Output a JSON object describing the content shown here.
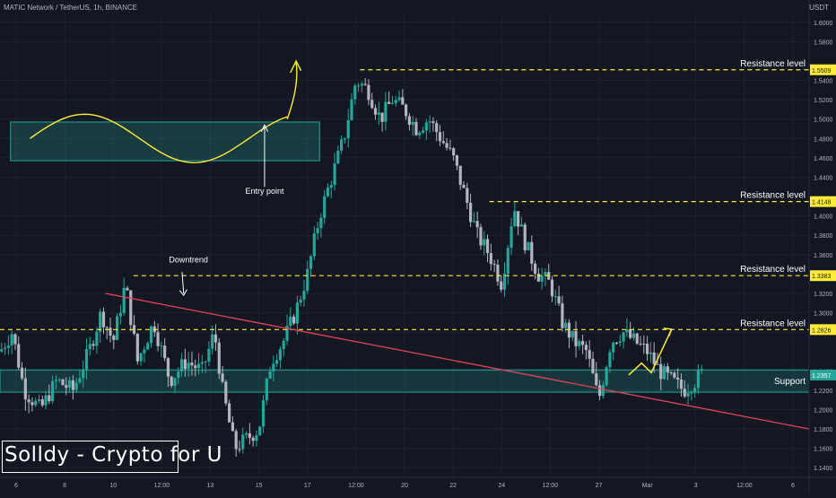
{
  "header": {
    "title": "MATIC Network / TetherUS, 1h, BINANCE",
    "currency": "USDT"
  },
  "watermark": {
    "text": "Solldy - Crypto for U"
  },
  "colors": {
    "background": "#131722",
    "up": "#26a69a",
    "down": "#b2b5be",
    "resistance": "#ffeb3b",
    "trend": "#e0445a",
    "zone": "#26a69a",
    "annotation": "#ffeb3b"
  },
  "chart_data": {
    "type": "candlestick",
    "symbol": "MATIC Network / TetherUS, 1h, BINANCE",
    "y_unit": "USDT",
    "ylim": [
      1.13,
      1.61
    ],
    "y_ticks": [
      "1.6000",
      "1.5800",
      "1.5400",
      "1.5200",
      "1.5000",
      "1.4800",
      "1.4600",
      "1.4400",
      "1.4000",
      "1.3800",
      "1.3600",
      "1.3200",
      "1.3000",
      "1.2800",
      "1.2400",
      "1.2200",
      "1.2000",
      "1.1800",
      "1.1600",
      "1.1400"
    ],
    "x_ticks": [
      "6",
      "8",
      "10",
      "12:00",
      "13",
      "15",
      "17",
      "12:00",
      "20",
      "22",
      "24",
      "12:00",
      "27",
      "Mar",
      "3",
      "12:00",
      "6"
    ],
    "price_path": [
      [
        0,
        1.26
      ],
      [
        0.015,
        1.28
      ],
      [
        0.03,
        1.22
      ],
      [
        0.05,
        1.2
      ],
      [
        0.07,
        1.23
      ],
      [
        0.09,
        1.22
      ],
      [
        0.11,
        1.26
      ],
      [
        0.125,
        1.3
      ],
      [
        0.14,
        1.27
      ],
      [
        0.155,
        1.33
      ],
      [
        0.17,
        1.25
      ],
      [
        0.19,
        1.29
      ],
      [
        0.21,
        1.23
      ],
      [
        0.23,
        1.25
      ],
      [
        0.25,
        1.24
      ],
      [
        0.265,
        1.28
      ],
      [
        0.275,
        1.22
      ],
      [
        0.29,
        1.16
      ],
      [
        0.305,
        1.17
      ],
      [
        0.32,
        1.18
      ],
      [
        0.335,
        1.25
      ],
      [
        0.35,
        1.27
      ],
      [
        0.365,
        1.3
      ],
      [
        0.38,
        1.34
      ],
      [
        0.395,
        1.4
      ],
      [
        0.41,
        1.44
      ],
      [
        0.425,
        1.48
      ],
      [
        0.44,
        1.54
      ],
      [
        0.455,
        1.53
      ],
      [
        0.47,
        1.5
      ],
      [
        0.485,
        1.52
      ],
      [
        0.5,
        1.51
      ],
      [
        0.515,
        1.49
      ],
      [
        0.53,
        1.5
      ],
      [
        0.545,
        1.48
      ],
      [
        0.56,
        1.46
      ],
      [
        0.575,
        1.42
      ],
      [
        0.59,
        1.38
      ],
      [
        0.605,
        1.36
      ],
      [
        0.62,
        1.33
      ],
      [
        0.635,
        1.41
      ],
      [
        0.65,
        1.37
      ],
      [
        0.665,
        1.34
      ],
      [
        0.68,
        1.33
      ],
      [
        0.695,
        1.29
      ],
      [
        0.71,
        1.27
      ],
      [
        0.725,
        1.26
      ],
      [
        0.74,
        1.21
      ],
      [
        0.755,
        1.27
      ],
      [
        0.77,
        1.28
      ],
      [
        0.785,
        1.27
      ],
      [
        0.8,
        1.26
      ],
      [
        0.815,
        1.24
      ],
      [
        0.83,
        1.23
      ],
      [
        0.845,
        1.22
      ],
      [
        0.86,
        1.23
      ],
      [
        0.87,
        1.24
      ]
    ],
    "levels": [
      {
        "label": "Resistance level",
        "value": 1.5509,
        "tag": "1.5509"
      },
      {
        "label": "Resistance level",
        "value": 1.4148,
        "tag": "1.4148"
      },
      {
        "label": "Resistance level",
        "value": 1.3383,
        "tag": "1.3383"
      },
      {
        "label": "Resistance level",
        "value": 1.2826,
        "tag": "1.2826"
      }
    ],
    "support": {
      "label": "Support",
      "value": 1.2357,
      "tag": "1.2357",
      "low": 1.218,
      "high": 1.241
    },
    "downtrend": {
      "label": "Downtrend",
      "start": 1.32,
      "end": 1.18
    },
    "entry": {
      "label": "Entry point"
    },
    "projection": [
      1.2357,
      1.248,
      1.238,
      1.283
    ]
  }
}
